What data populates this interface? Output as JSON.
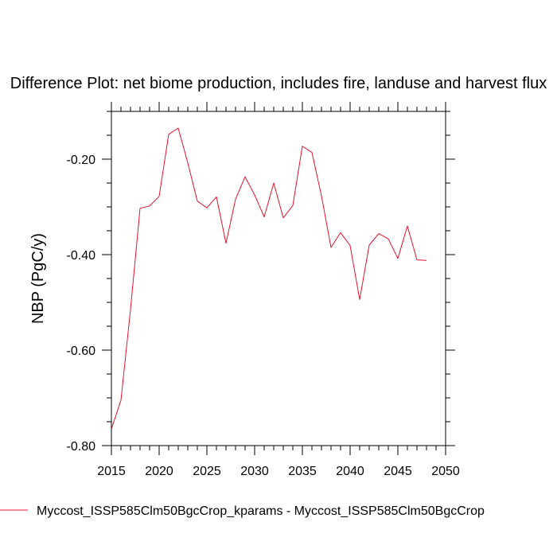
{
  "chart_data": {
    "type": "line",
    "title": "Difference Plot: net biome production, includes fire, landuse and harvest flux",
    "xlabel": "",
    "ylabel": "NBP  (PgC/y)",
    "xlim": [
      2015,
      2050
    ],
    "ylim": [
      -0.8,
      -0.1
    ],
    "xticks": [
      2015,
      2020,
      2025,
      2030,
      2035,
      2040,
      2045,
      2050
    ],
    "yticks": [
      -0.8,
      -0.6,
      -0.4,
      -0.2
    ],
    "ytick_labels": [
      "-0.80",
      "-0.60",
      "-0.40",
      "-0.20"
    ],
    "grid": false,
    "legend_position": "bottom-left",
    "series": [
      {
        "name": "Myccost_ISSP585Clm50BgcCrop_kparams - Myccost_ISSP585Clm50BgcCrop",
        "color": "#e8112d",
        "x": [
          2015,
          2016,
          2017,
          2018,
          2019,
          2020,
          2021,
          2022,
          2023,
          2024,
          2025,
          2026,
          2027,
          2028,
          2029,
          2030,
          2031,
          2032,
          2033,
          2034,
          2035,
          2036,
          2037,
          2038,
          2039,
          2040,
          2041,
          2042,
          2043,
          2044,
          2045,
          2046,
          2047,
          2048
        ],
        "values": [
          -0.765,
          -0.705,
          -0.515,
          -0.303,
          -0.298,
          -0.278,
          -0.148,
          -0.135,
          -0.208,
          -0.288,
          -0.302,
          -0.279,
          -0.376,
          -0.284,
          -0.237,
          -0.275,
          -0.321,
          -0.25,
          -0.323,
          -0.297,
          -0.173,
          -0.186,
          -0.277,
          -0.385,
          -0.354,
          -0.381,
          -0.494,
          -0.38,
          -0.356,
          -0.367,
          -0.408,
          -0.34,
          -0.411,
          -0.412
        ]
      }
    ]
  }
}
